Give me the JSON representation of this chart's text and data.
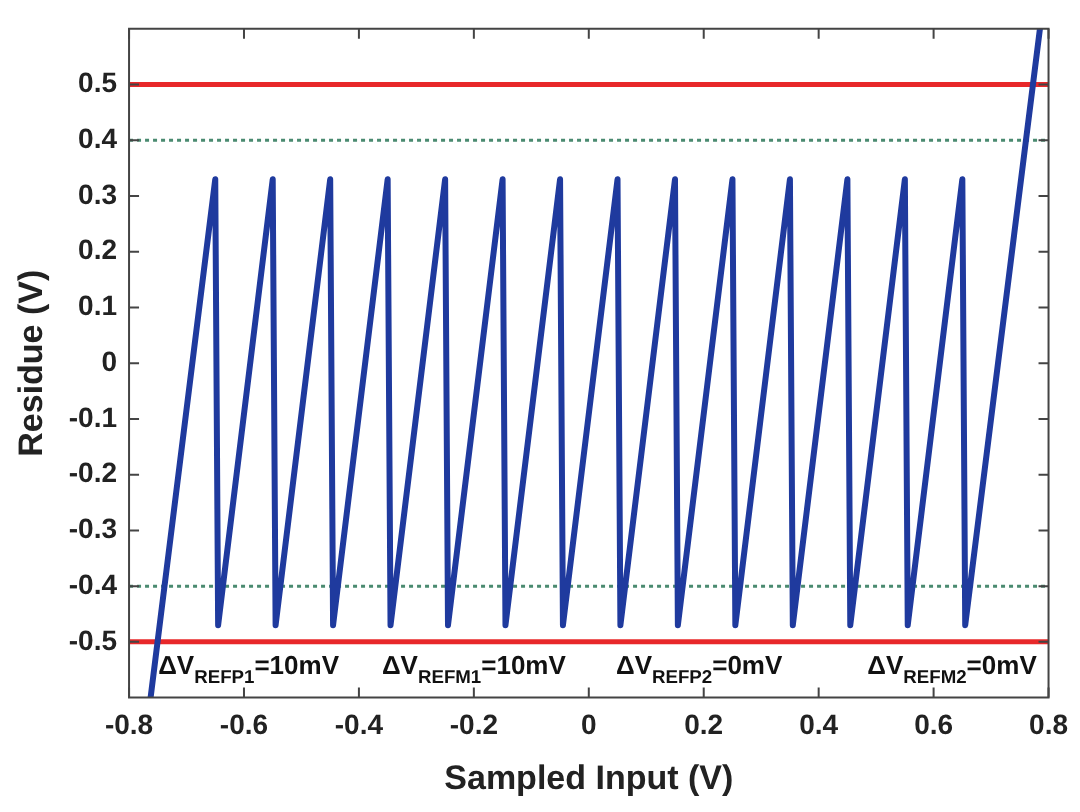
{
  "chart_data": {
    "type": "line",
    "xlabel": "Sampled Input (V)",
    "ylabel": "Residue (V)",
    "xlim": [
      -0.8,
      0.8
    ],
    "xticks": [
      -0.8,
      -0.6,
      -0.4,
      -0.2,
      0,
      0.2,
      0.4,
      0.6,
      0.8
    ],
    "ylim": [
      -0.6,
      0.6
    ],
    "yticks": [
      -0.5,
      -0.4,
      -0.3,
      -0.2,
      -0.1,
      0,
      0.1,
      0.2,
      0.3,
      0.4,
      0.5
    ],
    "grid": false,
    "legend": false,
    "marker": "none",
    "line_style": "solid",
    "series": [
      {
        "color": "#1f3a9e",
        "x": [
          -0.7625,
          -0.65,
          -0.645,
          -0.55,
          -0.545,
          -0.45,
          -0.445,
          -0.35,
          -0.345,
          -0.25,
          -0.245,
          -0.15,
          -0.145,
          -0.05,
          -0.045,
          0.05,
          0.055,
          0.15,
          0.155,
          0.25,
          0.255,
          0.35,
          0.355,
          0.45,
          0.455,
          0.55,
          0.555,
          0.65,
          0.655,
          0.785
        ],
        "values": [
          -0.6,
          0.33,
          -0.47,
          0.33,
          -0.47,
          0.33,
          -0.47,
          0.33,
          -0.47,
          0.33,
          -0.47,
          0.33,
          -0.47,
          0.33,
          -0.47,
          0.33,
          -0.47,
          0.33,
          -0.47,
          0.33,
          -0.47,
          0.33,
          -0.47,
          0.33,
          -0.47,
          0.33,
          -0.47,
          0.33,
          -0.47,
          0.6
        ]
      }
    ],
    "ref_lines": [
      {
        "axis": "y",
        "value": 0.5,
        "color": "#e8282a",
        "line_style": "solid"
      },
      {
        "axis": "y",
        "value": -0.5,
        "color": "#e8282a",
        "line_style": "solid"
      },
      {
        "axis": "y",
        "value": 0.4,
        "color": "#4a8a70",
        "line_style": "dotted"
      },
      {
        "axis": "y",
        "value": -0.4,
        "color": "#4a8a70",
        "line_style": "dotted"
      }
    ],
    "annotations": [
      "ΔV$_{REFP1}$=10mV",
      "ΔV$_{REFM1}$=10mV",
      "ΔV$_{REFP2}$=0mV",
      "ΔV$_{REFM2}$=0mV"
    ]
  }
}
